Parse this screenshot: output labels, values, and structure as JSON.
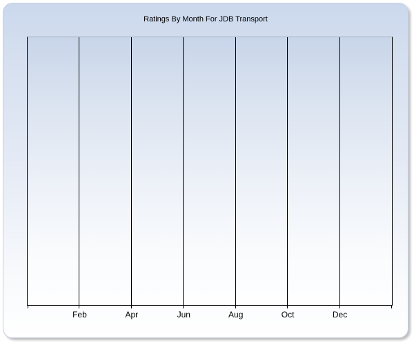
{
  "panel": {
    "title": "Ratings By Month For JDB Transport"
  },
  "colors": {
    "panel_background_top": "#cbd8ec",
    "panel_background_bottom": "#ffffff",
    "panel_border": "#c6d0e2",
    "plot_background_top": "#c8d5e9",
    "plot_background_bottom": "#fefeff",
    "plot_top_border": "#a3adbb",
    "grid_and_axis_line": "#000000",
    "text": "#000000"
  },
  "chart_data": {
    "type": "line",
    "title": "Ratings By Month For JDB Transport",
    "categories": [
      "Feb",
      "Apr",
      "Jun",
      "Aug",
      "Oct",
      "Dec"
    ],
    "series": [],
    "xlabel": "",
    "ylabel": "",
    "y_axis_ticks": [],
    "legend": "none",
    "grid": "vertical gridlines at each labeled month tick plus unlabeled lines at both plot edges; no horizontal gridlines",
    "note": "plot area is empty - no data points or series are rendered"
  }
}
